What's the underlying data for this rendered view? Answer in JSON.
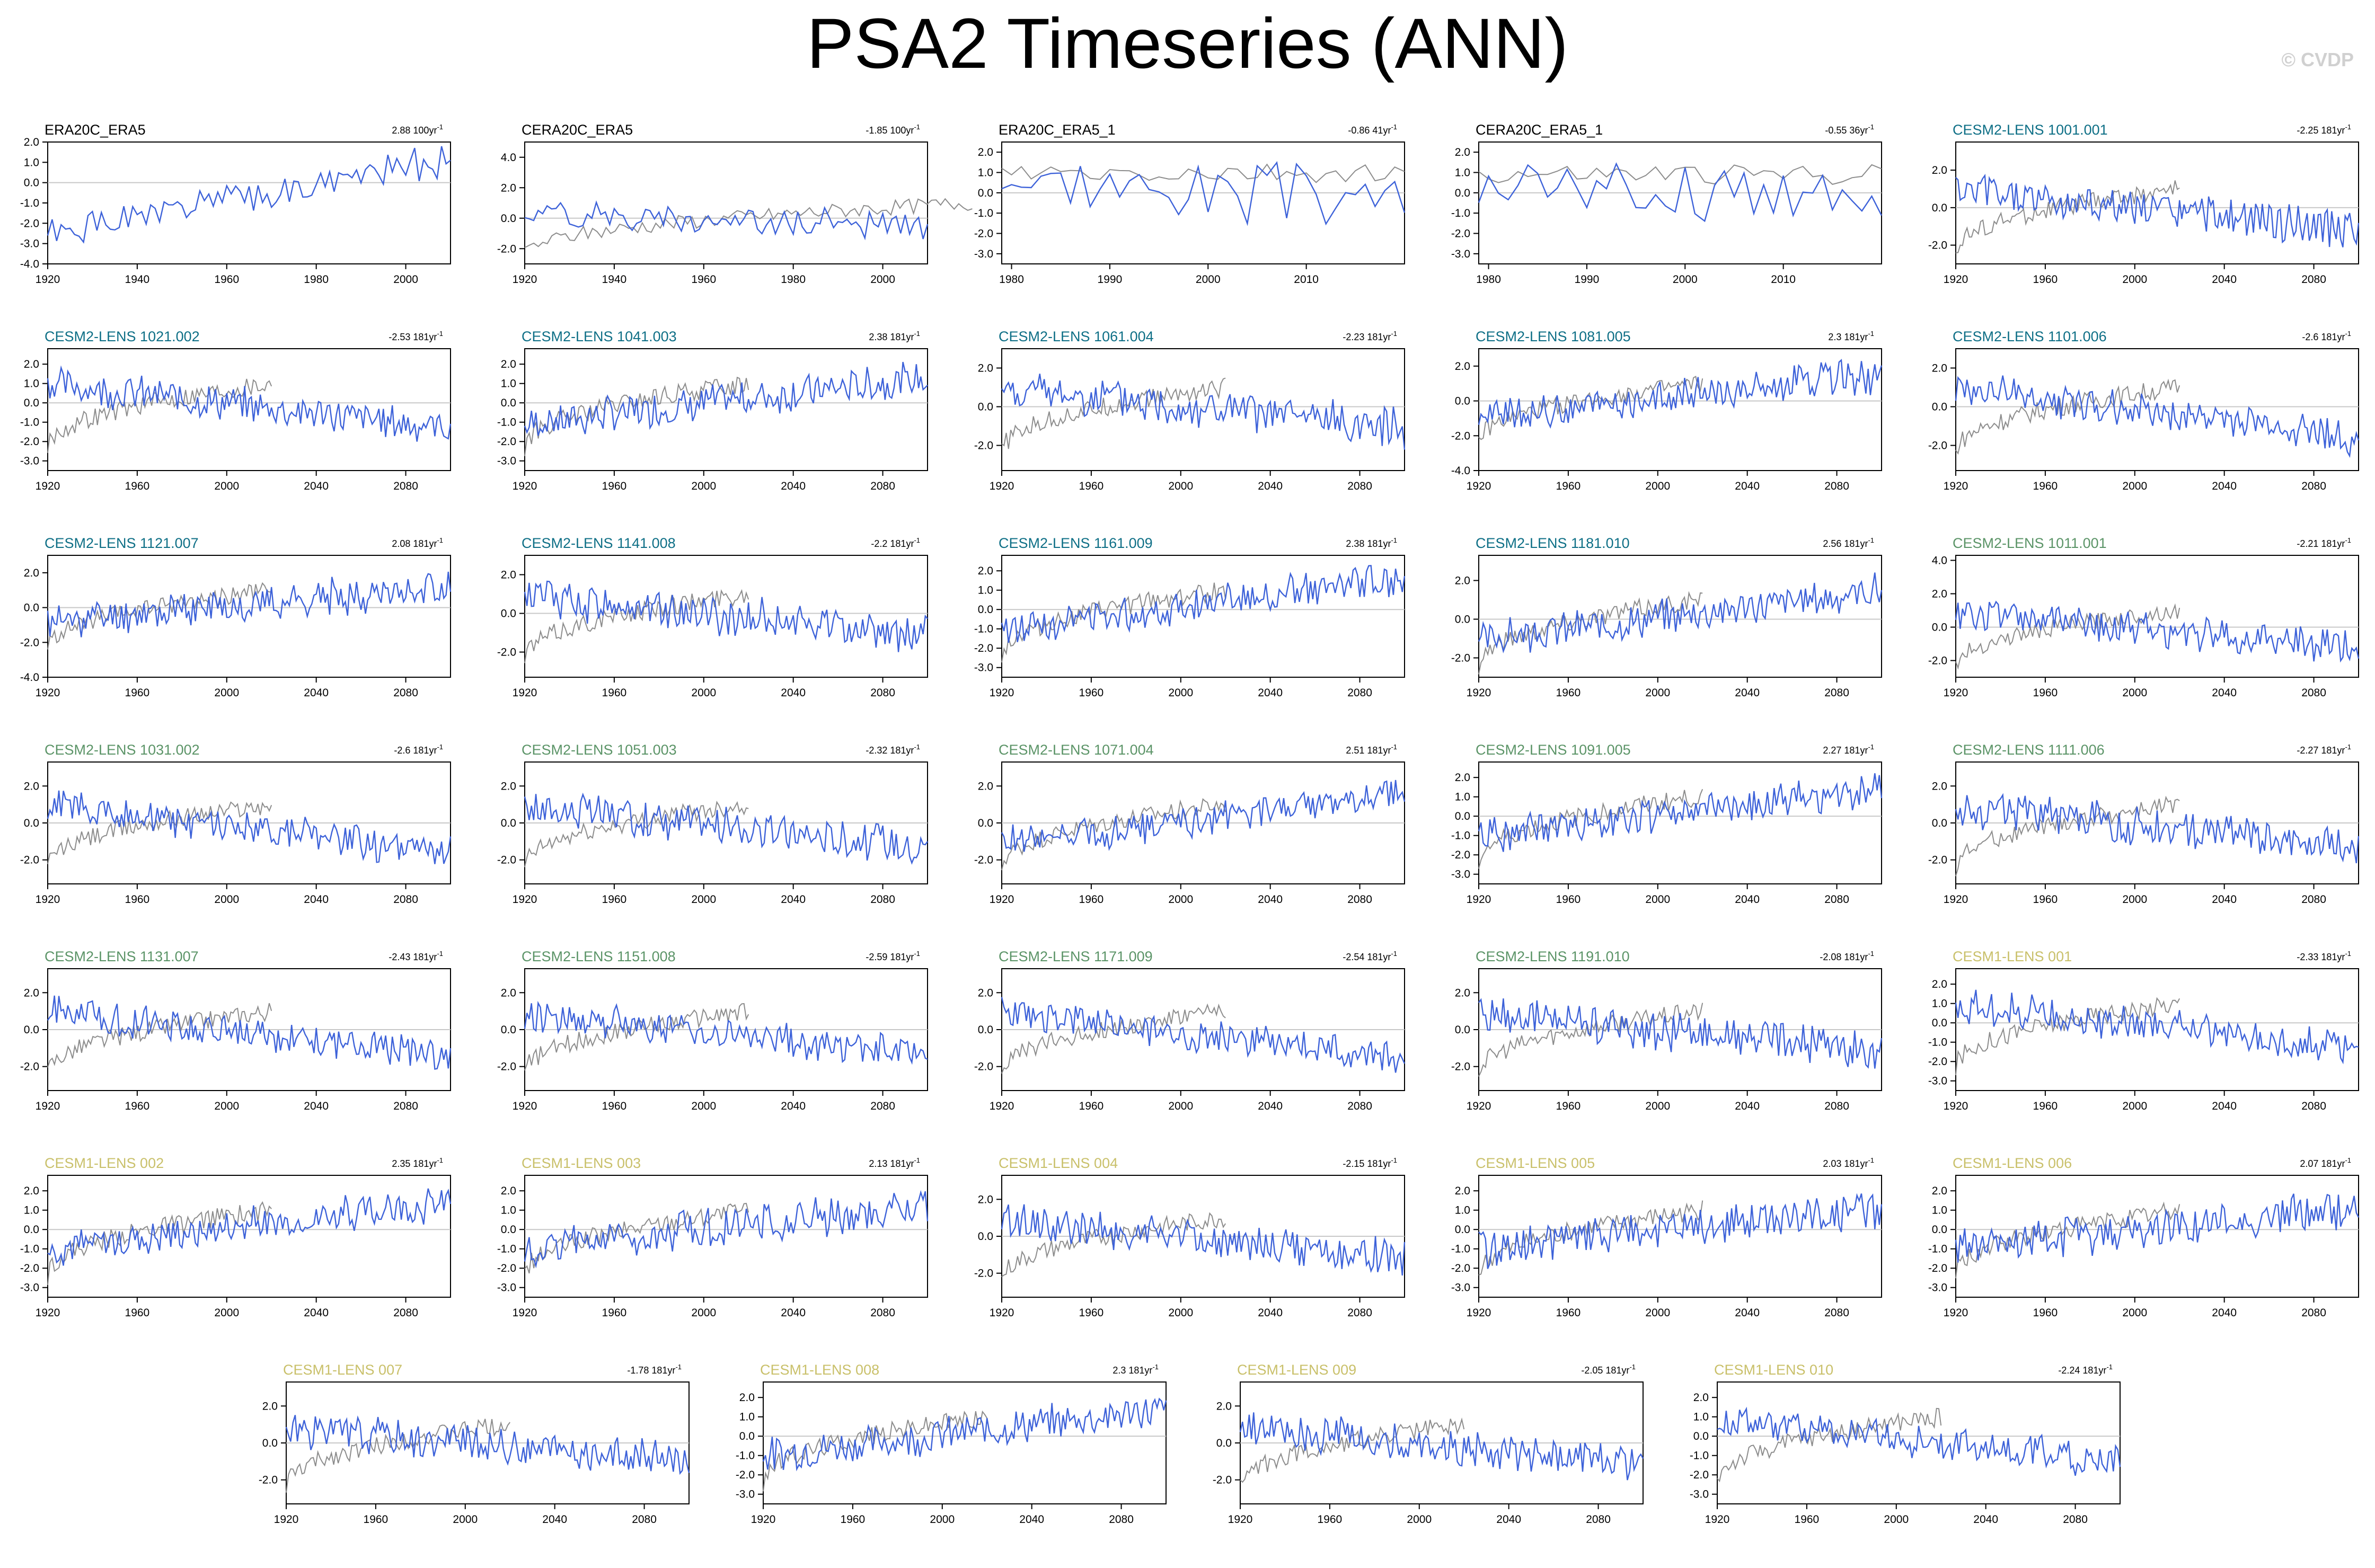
{
  "title": "PSA2 Timeseries (ANN)",
  "watermark": "© CVDP",
  "colors": {
    "model_line": "#3d62d9",
    "obs_line": "#8c8c8c",
    "zero_line": "#c8c8c8",
    "title_obs": "#000000",
    "title_cesm2_a": "#0e6f86",
    "title_cesm2_b": "#5b9467",
    "title_cesm1": "#c9c06a"
  },
  "chart_data": [
    {
      "type": "line",
      "title": "ERA20C_ERA5",
      "trend": "2.88 100yr",
      "title_color": "title_obs",
      "ylim": [
        -4,
        2
      ],
      "yticks": [
        "2.0",
        "1.0",
        "0.0",
        "-1.0",
        "-2.0",
        "-3.0",
        "-4.0"
      ],
      "xlim": [
        1920,
        2010
      ],
      "xticks": [
        "1920",
        "1940",
        "1960",
        "1980",
        "2000"
      ],
      "obs": false,
      "seed": 1,
      "start": -2.6,
      "end": 1.2,
      "amp": 0.7
    },
    {
      "type": "line",
      "title": "CERA20C_ERA5",
      "trend": "-1.85 100yr",
      "title_color": "title_obs",
      "ylim": [
        -3,
        5
      ],
      "yticks": [
        "4.0",
        "2.0",
        "0.0",
        "-2.0"
      ],
      "xlim": [
        1920,
        2010
      ],
      "xticks": [
        "1920",
        "1940",
        "1960",
        "1980",
        "2000"
      ],
      "obs": true,
      "seed": 2,
      "start": 0.4,
      "end": -0.6,
      "amp": 0.8
    },
    {
      "type": "line",
      "title": "ERA20C_ERA5_1",
      "trend": "-0.86 41yr",
      "title_color": "title_obs",
      "ylim": [
        -3.5,
        2.5
      ],
      "yticks": [
        "2.0",
        "1.0",
        "0.0",
        "-1.0",
        "-2.0",
        "-3.0"
      ],
      "xlim": [
        1979,
        2020
      ],
      "xticks": [
        "1980",
        "1990",
        "2000",
        "2010"
      ],
      "obs": true,
      "seed": 3,
      "start": 0.6,
      "end": -0.3,
      "amp": 1.3
    },
    {
      "type": "line",
      "title": "CERA20C_ERA5_1",
      "trend": "-0.55 36yr",
      "title_color": "title_obs",
      "ylim": [
        -3.5,
        2.5
      ],
      "yticks": [
        "2.0",
        "1.0",
        "0.0",
        "-1.0",
        "-2.0",
        "-3.0"
      ],
      "xlim": [
        1979,
        2020
      ],
      "xticks": [
        "1980",
        "1990",
        "2000",
        "2010"
      ],
      "obs": true,
      "seed": 4,
      "start": 0.5,
      "end": -0.2,
      "amp": 1.3
    },
    {
      "type": "line",
      "title": "CESM2-LENS 1001.001",
      "trend": "-2.25 181yr",
      "title_color": "title_cesm2_a",
      "ylim": [
        -3,
        3.5
      ],
      "yticks": [
        "2.0",
        "0.0",
        "-2.0"
      ],
      "xlim": [
        1920,
        2100
      ],
      "xticks": [
        "1920",
        "1960",
        "2000",
        "2040",
        "2080"
      ],
      "obs": true,
      "seed": 5,
      "start": 0.9,
      "end": -1.2,
      "amp": 0.9
    },
    {
      "type": "line",
      "title": "CESM2-LENS 1021.002",
      "trend": "-2.53 181yr",
      "title_color": "title_cesm2_a",
      "ylim": [
        -3.5,
        2.8
      ],
      "yticks": [
        "2.0",
        "1.0",
        "0.0",
        "-1.0",
        "-2.0",
        "-3.0"
      ],
      "xlim": [
        1920,
        2100
      ],
      "xticks": [
        "1920",
        "1960",
        "2000",
        "2040",
        "2080"
      ],
      "obs": true,
      "seed": 6,
      "start": 1.0,
      "end": -1.3,
      "amp": 0.8
    },
    {
      "type": "line",
      "title": "CESM2-LENS 1041.003",
      "trend": "2.38 181yr",
      "title_color": "title_cesm2_a",
      "ylim": [
        -3.5,
        2.8
      ],
      "yticks": [
        "2.0",
        "1.0",
        "0.0",
        "-1.0",
        "-2.0",
        "-3.0"
      ],
      "xlim": [
        1920,
        2100
      ],
      "xticks": [
        "1920",
        "1960",
        "2000",
        "2040",
        "2080"
      ],
      "obs": true,
      "seed": 7,
      "start": -1.1,
      "end": 1.3,
      "amp": 0.8
    },
    {
      "type": "line",
      "title": "CESM2-LENS 1061.004",
      "trend": "-2.23 181yr",
      "title_color": "title_cesm2_a",
      "ylim": [
        -3.3,
        3
      ],
      "yticks": [
        "2.0",
        "0.0",
        "-2.0"
      ],
      "xlim": [
        1920,
        2100
      ],
      "xticks": [
        "1920",
        "1960",
        "2000",
        "2040",
        "2080"
      ],
      "obs": true,
      "seed": 8,
      "start": 0.9,
      "end": -1.1,
      "amp": 0.9
    },
    {
      "type": "line",
      "title": "CESM2-LENS 1081.005",
      "trend": "2.3 181yr",
      "title_color": "title_cesm2_a",
      "ylim": [
        -4,
        3
      ],
      "yticks": [
        "2.0",
        "0.0",
        "-2.0",
        "-4.0"
      ],
      "xlim": [
        1920,
        2100
      ],
      "xticks": [
        "1920",
        "1960",
        "2000",
        "2040",
        "2080"
      ],
      "obs": true,
      "seed": 9,
      "start": -1.0,
      "end": 1.5,
      "amp": 0.9
    },
    {
      "type": "line",
      "title": "CESM2-LENS 1101.006",
      "trend": "-2.6 181yr",
      "title_color": "title_cesm2_a",
      "ylim": [
        -3.3,
        3
      ],
      "yticks": [
        "2.0",
        "0.0",
        "-2.0"
      ],
      "xlim": [
        1920,
        2100
      ],
      "xticks": [
        "1920",
        "1960",
        "2000",
        "2040",
        "2080"
      ],
      "obs": true,
      "seed": 10,
      "start": 1.0,
      "end": -1.6,
      "amp": 0.8
    },
    {
      "type": "line",
      "title": "CESM2-LENS 1121.007",
      "trend": "2.08 181yr",
      "title_color": "title_cesm2_a",
      "ylim": [
        -4,
        3
      ],
      "yticks": [
        "2.0",
        "0.0",
        "-2.0",
        "-4.0"
      ],
      "xlim": [
        1920,
        2100
      ],
      "xticks": [
        "1920",
        "1960",
        "2000",
        "2040",
        "2080"
      ],
      "obs": true,
      "seed": 11,
      "start": -0.8,
      "end": 1.2,
      "amp": 0.9
    },
    {
      "type": "line",
      "title": "CESM2-LENS 1141.008",
      "trend": "-2.2 181yr",
      "title_color": "title_cesm2_a",
      "ylim": [
        -3.3,
        3
      ],
      "yticks": [
        "2.0",
        "0.0",
        "-2.0"
      ],
      "xlim": [
        1920,
        2100
      ],
      "xticks": [
        "1920",
        "1960",
        "2000",
        "2040",
        "2080"
      ],
      "obs": true,
      "seed": 12,
      "start": 0.9,
      "end": -1.1,
      "amp": 0.9
    },
    {
      "type": "line",
      "title": "CESM2-LENS 1161.009",
      "trend": "2.38 181yr",
      "title_color": "title_cesm2_a",
      "ylim": [
        -3.5,
        2.8
      ],
      "yticks": [
        "2.0",
        "1.0",
        "0.0",
        "-1.0",
        "-2.0",
        "-3.0"
      ],
      "xlim": [
        1920,
        2100
      ],
      "xticks": [
        "1920",
        "1960",
        "2000",
        "2040",
        "2080"
      ],
      "obs": true,
      "seed": 13,
      "start": -1.0,
      "end": 1.6,
      "amp": 0.8
    },
    {
      "type": "line",
      "title": "CESM2-LENS 1181.010",
      "trend": "2.56 181yr",
      "title_color": "title_cesm2_a",
      "ylim": [
        -3,
        3.3
      ],
      "yticks": [
        "2.0",
        "0.0",
        "-2.0"
      ],
      "xlim": [
        1920,
        2100
      ],
      "xticks": [
        "1920",
        "1960",
        "2000",
        "2040",
        "2080"
      ],
      "obs": true,
      "seed": 14,
      "start": -1.1,
      "end": 1.5,
      "amp": 0.8
    },
    {
      "type": "line",
      "title": "CESM2-LENS 1011.001",
      "trend": "-2.21 181yr",
      "title_color": "title_cesm2_b",
      "ylim": [
        -3,
        4.3
      ],
      "yticks": [
        "4.0",
        "2.0",
        "0.0",
        "-2.0"
      ],
      "xlim": [
        1920,
        2100
      ],
      "xticks": [
        "1920",
        "1960",
        "2000",
        "2040",
        "2080"
      ],
      "obs": true,
      "seed": 15,
      "start": 0.9,
      "end": -1.2,
      "amp": 0.9
    },
    {
      "type": "line",
      "title": "CESM2-LENS 1031.002",
      "trend": "-2.6 181yr",
      "title_color": "title_cesm2_b",
      "ylim": [
        -3.3,
        3.3
      ],
      "yticks": [
        "2.0",
        "0.0",
        "-2.0"
      ],
      "xlim": [
        1920,
        2100
      ],
      "xticks": [
        "1920",
        "1960",
        "2000",
        "2040",
        "2080"
      ],
      "obs": true,
      "seed": 16,
      "start": 1.0,
      "end": -1.6,
      "amp": 0.8
    },
    {
      "type": "line",
      "title": "CESM2-LENS 1051.003",
      "trend": "-2.32 181yr",
      "title_color": "title_cesm2_b",
      "ylim": [
        -3.3,
        3.3
      ],
      "yticks": [
        "2.0",
        "0.0",
        "-2.0"
      ],
      "xlim": [
        1920,
        2100
      ],
      "xticks": [
        "1920",
        "1960",
        "2000",
        "2040",
        "2080"
      ],
      "obs": true,
      "seed": 17,
      "start": 0.9,
      "end": -1.3,
      "amp": 0.9
    },
    {
      "type": "line",
      "title": "CESM2-LENS 1071.004",
      "trend": "2.51 181yr",
      "title_color": "title_cesm2_b",
      "ylim": [
        -3.3,
        3.3
      ],
      "yticks": [
        "2.0",
        "0.0",
        "-2.0"
      ],
      "xlim": [
        1920,
        2100
      ],
      "xticks": [
        "1920",
        "1960",
        "2000",
        "2040",
        "2080"
      ],
      "obs": true,
      "seed": 18,
      "start": -1.1,
      "end": 1.5,
      "amp": 0.8
    },
    {
      "type": "line",
      "title": "CESM2-LENS 1091.005",
      "trend": "2.27 181yr",
      "title_color": "title_cesm2_b",
      "ylim": [
        -3.5,
        2.8
      ],
      "yticks": [
        "2.0",
        "1.0",
        "0.0",
        "-1.0",
        "-2.0",
        "-3.0"
      ],
      "xlim": [
        1920,
        2100
      ],
      "xticks": [
        "1920",
        "1960",
        "2000",
        "2040",
        "2080"
      ],
      "obs": true,
      "seed": 19,
      "start": -1.0,
      "end": 1.4,
      "amp": 0.8
    },
    {
      "type": "line",
      "title": "CESM2-LENS 1111.006",
      "trend": "-2.27 181yr",
      "title_color": "title_cesm2_b",
      "ylim": [
        -3.3,
        3.3
      ],
      "yticks": [
        "2.0",
        "0.0",
        "-2.0"
      ],
      "xlim": [
        1920,
        2100
      ],
      "xticks": [
        "1920",
        "1960",
        "2000",
        "2040",
        "2080"
      ],
      "obs": true,
      "seed": 20,
      "start": 0.9,
      "end": -1.3,
      "amp": 0.9
    },
    {
      "type": "line",
      "title": "CESM2-LENS 1131.007",
      "trend": "-2.43 181yr",
      "title_color": "title_cesm2_b",
      "ylim": [
        -3.3,
        3.3
      ],
      "yticks": [
        "2.0",
        "0.0",
        "-2.0"
      ],
      "xlim": [
        1920,
        2100
      ],
      "xticks": [
        "1920",
        "1960",
        "2000",
        "2040",
        "2080"
      ],
      "obs": true,
      "seed": 21,
      "start": 1.0,
      "end": -1.4,
      "amp": 0.8
    },
    {
      "type": "line",
      "title": "CESM2-LENS 1151.008",
      "trend": "-2.59 181yr",
      "title_color": "title_cesm2_b",
      "ylim": [
        -3.3,
        3.3
      ],
      "yticks": [
        "2.0",
        "0.0",
        "-2.0"
      ],
      "xlim": [
        1920,
        2100
      ],
      "xticks": [
        "1920",
        "1960",
        "2000",
        "2040",
        "2080"
      ],
      "obs": true,
      "seed": 22,
      "start": 0.9,
      "end": -1.4,
      "amp": 0.8
    },
    {
      "type": "line",
      "title": "CESM2-LENS 1171.009",
      "trend": "-2.54 181yr",
      "title_color": "title_cesm2_b",
      "ylim": [
        -3.3,
        3.3
      ],
      "yticks": [
        "2.0",
        "0.0",
        "-2.0"
      ],
      "xlim": [
        1920,
        2100
      ],
      "xticks": [
        "1920",
        "1960",
        "2000",
        "2040",
        "2080"
      ],
      "obs": true,
      "seed": 23,
      "start": 0.9,
      "end": -1.5,
      "amp": 0.8
    },
    {
      "type": "line",
      "title": "CESM2-LENS 1191.010",
      "trend": "-2.08 181yr",
      "title_color": "title_cesm2_b",
      "ylim": [
        -3.3,
        3.3
      ],
      "yticks": [
        "2.0",
        "0.0",
        "-2.0"
      ],
      "xlim": [
        1920,
        2100
      ],
      "xticks": [
        "1920",
        "1960",
        "2000",
        "2040",
        "2080"
      ],
      "obs": true,
      "seed": 24,
      "start": 0.9,
      "end": -1.2,
      "amp": 0.9
    },
    {
      "type": "line",
      "title": "CESM1-LENS 001",
      "trend": "-2.33 181yr",
      "title_color": "title_cesm1",
      "ylim": [
        -3.5,
        2.8
      ],
      "yticks": [
        "2.0",
        "1.0",
        "0.0",
        "-1.0",
        "-2.0",
        "-3.0"
      ],
      "xlim": [
        1920,
        2100
      ],
      "xticks": [
        "1920",
        "1960",
        "2000",
        "2040",
        "2080"
      ],
      "obs": true,
      "seed": 25,
      "start": 0.9,
      "end": -1.3,
      "amp": 0.8
    },
    {
      "type": "line",
      "title": "CESM1-LENS 002",
      "trend": "2.35 181yr",
      "title_color": "title_cesm1",
      "ylim": [
        -3.5,
        2.8
      ],
      "yticks": [
        "2.0",
        "1.0",
        "0.0",
        "-1.0",
        "-2.0",
        "-3.0"
      ],
      "xlim": [
        1920,
        2100
      ],
      "xticks": [
        "1920",
        "1960",
        "2000",
        "2040",
        "2080"
      ],
      "obs": true,
      "seed": 26,
      "start": -1.0,
      "end": 1.4,
      "amp": 0.8
    },
    {
      "type": "line",
      "title": "CESM1-LENS 003",
      "trend": "2.13 181yr",
      "title_color": "title_cesm1",
      "ylim": [
        -3.5,
        2.8
      ],
      "yticks": [
        "2.0",
        "1.0",
        "0.0",
        "-1.0",
        "-2.0",
        "-3.0"
      ],
      "xlim": [
        1920,
        2100
      ],
      "xticks": [
        "1920",
        "1960",
        "2000",
        "2040",
        "2080"
      ],
      "obs": true,
      "seed": 27,
      "start": -1.0,
      "end": 1.2,
      "amp": 0.9
    },
    {
      "type": "line",
      "title": "CESM1-LENS 004",
      "trend": "-2.15 181yr",
      "title_color": "title_cesm1",
      "ylim": [
        -3.3,
        3.3
      ],
      "yticks": [
        "2.0",
        "0.0",
        "-2.0"
      ],
      "xlim": [
        1920,
        2100
      ],
      "xticks": [
        "1920",
        "1960",
        "2000",
        "2040",
        "2080"
      ],
      "obs": true,
      "seed": 28,
      "start": 0.9,
      "end": -1.2,
      "amp": 0.9
    },
    {
      "type": "line",
      "title": "CESM1-LENS 005",
      "trend": "2.03 181yr",
      "title_color": "title_cesm1",
      "ylim": [
        -3.5,
        2.8
      ],
      "yticks": [
        "2.0",
        "1.0",
        "0.0",
        "-1.0",
        "-2.0",
        "-3.0"
      ],
      "xlim": [
        1920,
        2100
      ],
      "xticks": [
        "1920",
        "1960",
        "2000",
        "2040",
        "2080"
      ],
      "obs": true,
      "seed": 29,
      "start": -1.0,
      "end": 1.1,
      "amp": 0.9
    },
    {
      "type": "line",
      "title": "CESM1-LENS 006",
      "trend": "2.07 181yr",
      "title_color": "title_cesm1",
      "ylim": [
        -3.5,
        2.8
      ],
      "yticks": [
        "2.0",
        "1.0",
        "0.0",
        "-1.0",
        "-2.0",
        "-3.0"
      ],
      "xlim": [
        1920,
        2100
      ],
      "xticks": [
        "1920",
        "1960",
        "2000",
        "2040",
        "2080"
      ],
      "obs": true,
      "seed": 30,
      "start": -1.0,
      "end": 1.1,
      "amp": 0.9
    },
    {
      "type": "line",
      "title": "CESM1-LENS 007",
      "trend": "-1.78 181yr",
      "title_color": "title_cesm1",
      "ylim": [
        -3.3,
        3.3
      ],
      "yticks": [
        "2.0",
        "0.0",
        "-2.0"
      ],
      "xlim": [
        1920,
        2100
      ],
      "xticks": [
        "1920",
        "1960",
        "2000",
        "2040",
        "2080"
      ],
      "obs": true,
      "seed": 31,
      "start": 0.8,
      "end": -1.0,
      "amp": 0.9
    },
    {
      "type": "line",
      "title": "CESM1-LENS 008",
      "trend": "2.3 181yr",
      "title_color": "title_cesm1",
      "ylim": [
        -3.5,
        2.8
      ],
      "yticks": [
        "2.0",
        "1.0",
        "0.0",
        "-1.0",
        "-2.0",
        "-3.0"
      ],
      "xlim": [
        1920,
        2100
      ],
      "xticks": [
        "1920",
        "1960",
        "2000",
        "2040",
        "2080"
      ],
      "obs": true,
      "seed": 32,
      "start": -1.0,
      "end": 1.4,
      "amp": 0.8
    },
    {
      "type": "line",
      "title": "CESM1-LENS 009",
      "trend": "-2.05 181yr",
      "title_color": "title_cesm1",
      "ylim": [
        -3.3,
        3.3
      ],
      "yticks": [
        "2.0",
        "0.0",
        "-2.0"
      ],
      "xlim": [
        1920,
        2100
      ],
      "xticks": [
        "1920",
        "1960",
        "2000",
        "2040",
        "2080"
      ],
      "obs": true,
      "seed": 33,
      "start": 0.8,
      "end": -1.2,
      "amp": 0.9
    },
    {
      "type": "line",
      "title": "CESM1-LENS 010",
      "trend": "-2.24 181yr",
      "title_color": "title_cesm1",
      "ylim": [
        -3.5,
        2.8
      ],
      "yticks": [
        "2.0",
        "1.0",
        "0.0",
        "-1.0",
        "-2.0",
        "-3.0"
      ],
      "xlim": [
        1920,
        2100
      ],
      "xticks": [
        "1920",
        "1960",
        "2000",
        "2040",
        "2080"
      ],
      "obs": true,
      "seed": 34,
      "start": 0.9,
      "end": -1.3,
      "amp": 0.8
    }
  ]
}
